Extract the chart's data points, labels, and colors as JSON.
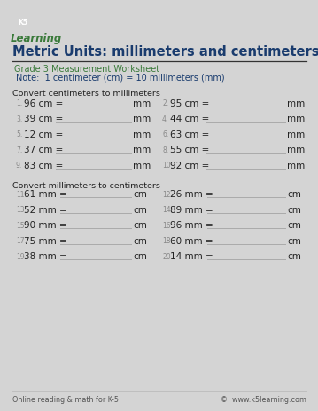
{
  "title": "Metric Units: millimeters and centimeters",
  "subtitle": "Grade 3 Measurement Worksheet",
  "note": "Note:  1 centimeter (cm) = 10 millimeters (mm)",
  "section1_label": "Convert centimeters to millimeters",
  "section2_label": "Convert millimeters to centimeters",
  "cm_to_mm": [
    [
      "1.",
      "96 cm =",
      "mm"
    ],
    [
      "2.",
      "95 cm =",
      "mm"
    ],
    [
      "3.",
      "39 cm =",
      "mm"
    ],
    [
      "4.",
      "44 cm =",
      "mm"
    ],
    [
      "5.",
      "12 cm =",
      "mm"
    ],
    [
      "6.",
      "63 cm =",
      "mm"
    ],
    [
      "7.",
      "37 cm =",
      "mm"
    ],
    [
      "8.",
      "55 cm =",
      "mm"
    ],
    [
      "9.",
      "83 cm =",
      "mm"
    ],
    [
      "10.",
      "92 cm =",
      "mm"
    ]
  ],
  "mm_to_cm": [
    [
      "11.",
      "61 mm =",
      "cm"
    ],
    [
      "12.",
      "26 mm =",
      "cm"
    ],
    [
      "13.",
      "52 mm =",
      "cm"
    ],
    [
      "14.",
      "89 mm =",
      "cm"
    ],
    [
      "15.",
      "90 mm =",
      "cm"
    ],
    [
      "16.",
      "96 mm =",
      "cm"
    ],
    [
      "17.",
      "75 mm =",
      "cm"
    ],
    [
      "18.",
      "60 mm =",
      "cm"
    ],
    [
      "19.",
      "38 mm =",
      "cm"
    ],
    [
      "20.",
      "14 mm =",
      "cm"
    ]
  ],
  "footer_left": "Online reading & math for K-5",
  "footer_right": "©  www.k5learning.com",
  "title_color": "#1a3c6e",
  "subtitle_color": "#3a7a3a",
  "note_bg_color": "#d4d4d4",
  "note_text_color": "#1a3c6e",
  "border_color": "#6a9fc0",
  "line_color": "#aaaaaa",
  "text_color": "#222222",
  "num_color": "#888888",
  "footer_color": "#555555",
  "logo_box_color": "#2d6fa8",
  "logo_text_color": "#3a7a3a"
}
